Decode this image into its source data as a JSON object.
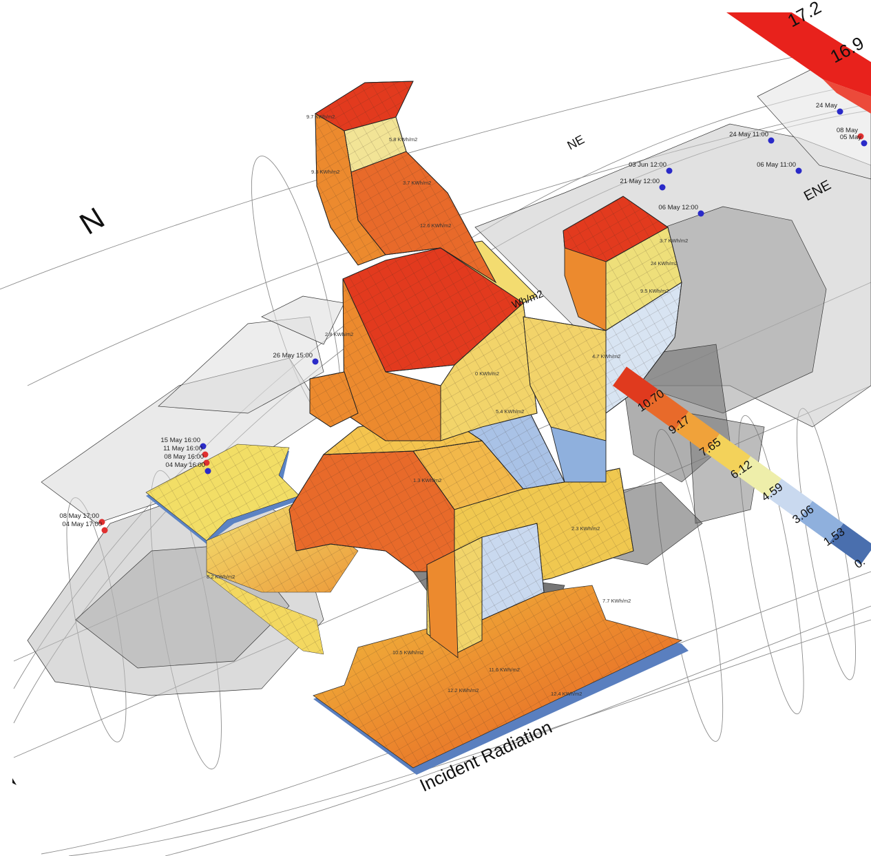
{
  "title": "Incident Radiation",
  "compass": {
    "north": "N",
    "northeast": "NE",
    "east_northeast": "ENE"
  },
  "unit_fragment": "Wh/m2",
  "legend": {
    "values": [
      "0.",
      "1.53",
      "3.06",
      "4.59",
      "6.12",
      "7.65",
      "9.17",
      "10.70"
    ],
    "top_values": [
      "17.2",
      "16.9"
    ],
    "colors": [
      "#4a6fae",
      "#8fb0dd",
      "#c9d9ef",
      "#eeeeaa",
      "#f3d25a",
      "#f0a23a",
      "#e86a2a",
      "#e03a1e"
    ]
  },
  "sun_points": [
    {
      "label": "15 May 16:00",
      "color": "#2a2ac8"
    },
    {
      "label": "11 May 16:00",
      "color": "#e03030"
    },
    {
      "label": "08 May 16:00",
      "color": "#e03030"
    },
    {
      "label": "04 May 16:00",
      "color": "#2a2ac8"
    },
    {
      "label": "08 May 17:00",
      "color": "#e03030"
    },
    {
      "label": "04 May 17:00",
      "color": "#e03030"
    },
    {
      "label": "26 May 15:00",
      "color": "#2a2ac8"
    },
    {
      "label": "03 Jun 12:00",
      "color": "#2a2ac8"
    },
    {
      "label": "21 May 12:00",
      "color": "#2a2ac8"
    },
    {
      "label": "06 May 12:00",
      "color": "#2a2ac8"
    },
    {
      "label": "24 May 11:00",
      "color": "#2a2ac8"
    },
    {
      "label": "06 May 11:00",
      "color": "#2a2ac8"
    },
    {
      "label": "24 May",
      "color": "#2a2ac8"
    },
    {
      "label": "08 May",
      "color": "#e03030"
    },
    {
      "label": "05 May",
      "color": "#2a2ac8"
    }
  ],
  "annotations": [
    "9.7 KWh/m2",
    "9.3 KWh/m2",
    "5.8 KWh/m2",
    "3.7 KWh/m2",
    "12.6 KWh/m2",
    "24 KWh/m2",
    "3.7 KWh/m2",
    "9.5 KWh/m2",
    "2.8 KWh/m2",
    "0 KWh/m2",
    "10.5 KWh/m2",
    "11.6 KWh/m2",
    "12.2 KWh/m2",
    "12.4 KWh/m2",
    "4.7 KWh/m2",
    "5.4 KWh/m2",
    "2.3 KWh/m2",
    "8.2 KWh/m2",
    "1.3 KWh/m2",
    "7.7 KWh/m2"
  ]
}
